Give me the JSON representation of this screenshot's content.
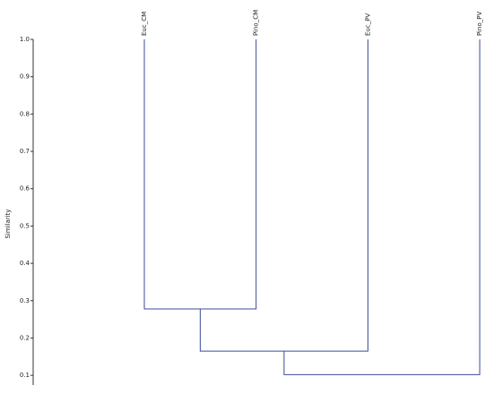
{
  "chart_data": {
    "type": "dendrogram",
    "y_label": "Similarity",
    "leaves": [
      "Euc_CM",
      "Pino_CM",
      "Euc_PV",
      "Pino_PV"
    ],
    "merges": [
      {
        "join": [
          0,
          1
        ],
        "value": 0.278
      },
      {
        "join": [
          4,
          2
        ],
        "value": 0.165
      },
      {
        "join": [
          5,
          3
        ],
        "value": 0.102
      }
    ],
    "color": "#3b4b9b",
    "ylim": [
      0.074,
      1.0
    ],
    "yticks": [
      {
        "value": 1,
        "label": "1.0"
      },
      0.9,
      0.8,
      0.7,
      0.6,
      0.5,
      0.4,
      0.3,
      0.2,
      0.1
    ]
  }
}
